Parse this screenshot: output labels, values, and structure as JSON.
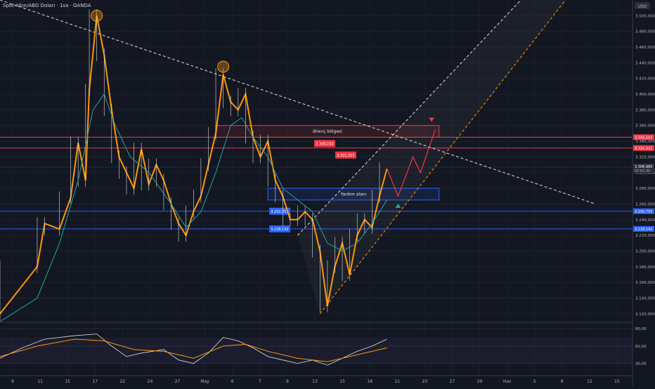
{
  "header": {
    "symbol_title": "Spot Altın/ABD Doları · 1sa · OANDA",
    "currency": "USD"
  },
  "colors": {
    "background": "#131722",
    "candle": "#ff9800",
    "wick": "#e0e0e0",
    "resistance": "#f23645",
    "support": "#2962ff",
    "channel": "#ff9800",
    "ma": "#26a69a",
    "rsi": "#e0e0e0",
    "rsi_ma": "#ff9800",
    "text": "#b2b5be"
  },
  "chart_data": [
    {
      "type": "candlestick",
      "title": "",
      "y_ticks": [
        "3.500,000",
        "3.480,000",
        "3.460,000",
        "3.440,000",
        "3.420,000",
        "3.400,000",
        "3.380,000",
        "3.360,000",
        "3.340,000",
        "3.320,000",
        "3.300,000",
        "3.280,000",
        "3.260,000",
        "3.240,000",
        "3.220,000",
        "3.200,000",
        "3.180,000",
        "3.160,000",
        "3.140,000",
        "3.120,000"
      ],
      "ylim": [
        3110,
        3520
      ],
      "x_ticks": [
        "9",
        "11",
        "15",
        "17",
        "22",
        "24",
        "27",
        "May",
        "6",
        "7",
        "9",
        "13",
        "15",
        "18",
        "21",
        "23",
        "27",
        "29",
        "Haz",
        "5",
        "8",
        "12",
        "15"
      ],
      "price_path": [
        [
          0,
          3120
        ],
        [
          10,
          3180
        ],
        [
          12,
          3235
        ],
        [
          16,
          3228
        ],
        [
          19,
          3268
        ],
        [
          21,
          3338
        ],
        [
          23,
          3290
        ],
        [
          24,
          3405
        ],
        [
          26,
          3500
        ],
        [
          28,
          3450
        ],
        [
          30,
          3380
        ],
        [
          32,
          3320
        ],
        [
          34,
          3300
        ],
        [
          36,
          3280
        ],
        [
          38,
          3330
        ],
        [
          40,
          3285
        ],
        [
          42,
          3310
        ],
        [
          44,
          3290
        ],
        [
          46,
          3260
        ],
        [
          48,
          3235
        ],
        [
          50,
          3220
        ],
        [
          52,
          3250
        ],
        [
          54,
          3270
        ],
        [
          56,
          3310
        ],
        [
          58,
          3350
        ],
        [
          60,
          3425
        ],
        [
          62,
          3390
        ],
        [
          64,
          3380
        ],
        [
          66,
          3400
        ],
        [
          68,
          3345
        ],
        [
          70,
          3320
        ],
        [
          72,
          3340
        ],
        [
          74,
          3290
        ],
        [
          76,
          3270
        ],
        [
          78,
          3240
        ],
        [
          80,
          3240
        ],
        [
          82,
          3250
        ],
        [
          84,
          3240
        ],
        [
          86,
          3200
        ],
        [
          88,
          3130
        ],
        [
          90,
          3180
        ],
        [
          92,
          3210
        ],
        [
          94,
          3170
        ],
        [
          96,
          3220
        ],
        [
          98,
          3240
        ],
        [
          100,
          3230
        ],
        [
          102,
          3270
        ],
        [
          104,
          3305
        ]
      ],
      "ma_path": [
        [
          0,
          3110
        ],
        [
          10,
          3140
        ],
        [
          16,
          3210
        ],
        [
          21,
          3290
        ],
        [
          25,
          3380
        ],
        [
          28,
          3400
        ],
        [
          31,
          3360
        ],
        [
          35,
          3320
        ],
        [
          40,
          3300
        ],
        [
          46,
          3260
        ],
        [
          50,
          3230
        ],
        [
          54,
          3250
        ],
        [
          58,
          3300
        ],
        [
          62,
          3360
        ],
        [
          65,
          3370
        ],
        [
          68,
          3345
        ],
        [
          72,
          3320
        ],
        [
          76,
          3280
        ],
        [
          80,
          3265
        ],
        [
          84,
          3250
        ],
        [
          88,
          3210
        ],
        [
          92,
          3200
        ],
        [
          96,
          3210
        ],
        [
          100,
          3235
        ],
        [
          104,
          3265
        ]
      ],
      "highs_marked": [
        {
          "x": 26,
          "value": 3500
        },
        {
          "x": 60,
          "value": 3435
        }
      ],
      "zones": [
        {
          "label": "direnç bölgesi",
          "from": 3345,
          "to": 3360,
          "x_start": 58,
          "x_end": 118,
          "color": "#f23645"
        },
        {
          "label": "Yardım alanı",
          "from": 3265,
          "to": 3280,
          "x_start": 72,
          "x_end": 118,
          "color": "#2962ff"
        }
      ],
      "levels": [
        {
          "value": 3345.102,
          "label": "3.345,102",
          "color": "#f23645"
        },
        {
          "value": 3331.321,
          "label": "3.331,321",
          "color": "#f23645"
        },
        {
          "value": 3250.755,
          "label": "3.250,755",
          "color": "#2962ff"
        },
        {
          "value": 3228.192,
          "label": "3.228,192",
          "color": "#2962ff"
        }
      ],
      "current_price": {
        "value": 3306.985,
        "label": "3.306,985",
        "countdown": "02:01:30"
      },
      "trendline": {
        "from": [
          0,
          3520
        ],
        "to": [
          160,
          3260
        ]
      },
      "channel": {
        "upper": {
          "from": [
            80,
            3220
          ],
          "to": [
            140,
            3520
          ]
        },
        "lower": {
          "from": [
            86,
            3120
          ],
          "to": [
            152,
            3520
          ]
        }
      },
      "projection": [
        [
          104,
          3305
        ],
        [
          107,
          3270
        ],
        [
          111,
          3320
        ],
        [
          113,
          3300
        ],
        [
          117,
          3355
        ]
      ],
      "arrow_up_at": {
        "x": 107,
        "value": 3255
      },
      "arrow_down_at": {
        "x": 116,
        "value": 3370
      }
    },
    {
      "type": "line",
      "title": "",
      "y_ticks": [
        "80,00",
        "60,00",
        "40,00"
      ],
      "ylim": [
        30,
        85
      ],
      "band": [
        40,
        70
      ],
      "series": [
        {
          "values": [
            [
              0,
              46
            ],
            [
              6,
              58
            ],
            [
              12,
              68
            ],
            [
              20,
              72
            ],
            [
              26,
              74
            ],
            [
              30,
              60
            ],
            [
              34,
              48
            ],
            [
              38,
              52
            ],
            [
              44,
              56
            ],
            [
              48,
              44
            ],
            [
              52,
              40
            ],
            [
              56,
              52
            ],
            [
              60,
              70
            ],
            [
              64,
              66
            ],
            [
              68,
              58
            ],
            [
              72,
              48
            ],
            [
              76,
              44
            ],
            [
              80,
              40
            ],
            [
              84,
              44
            ],
            [
              88,
              38
            ],
            [
              92,
              46
            ],
            [
              96,
              54
            ],
            [
              100,
              60
            ],
            [
              104,
              68
            ]
          ]
        },
        {
          "values": [
            [
              0,
              48
            ],
            [
              10,
              60
            ],
            [
              20,
              68
            ],
            [
              28,
              66
            ],
            [
              36,
              56
            ],
            [
              44,
              54
            ],
            [
              52,
              46
            ],
            [
              60,
              60
            ],
            [
              66,
              62
            ],
            [
              72,
              54
            ],
            [
              80,
              46
            ],
            [
              88,
              42
            ],
            [
              96,
              50
            ],
            [
              104,
              58
            ]
          ]
        }
      ]
    }
  ]
}
